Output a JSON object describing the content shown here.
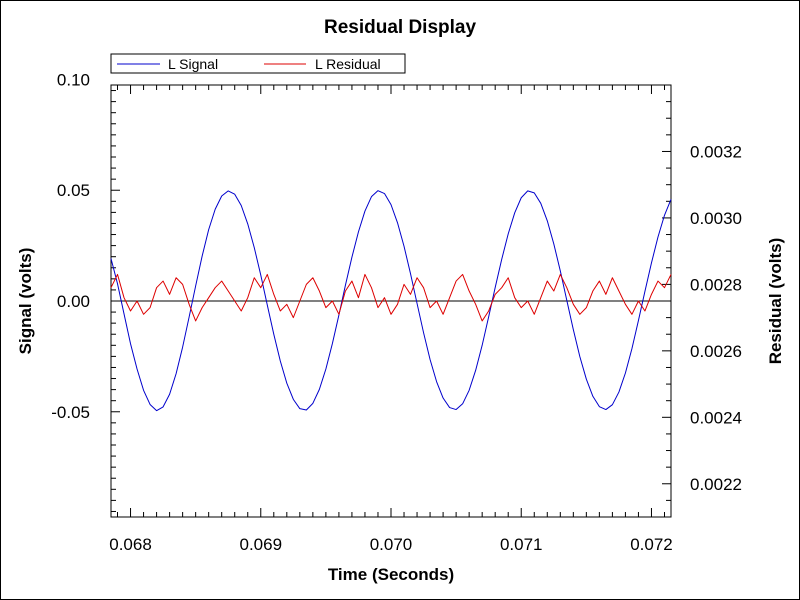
{
  "chart_data": {
    "type": "line",
    "title": "Residual Display",
    "xlabel": "Time (Seconds)",
    "ylabel_left": "Signal (volts)",
    "ylabel_right": "Residual (volts)",
    "xlim": [
      0.06785,
      0.07215
    ],
    "ylim_left": [
      -0.0975,
      0.0975
    ],
    "ylim_right": [
      0.0021,
      0.0034
    ],
    "x_ticks": [
      "0.068",
      "0.069",
      "0.070",
      "0.071",
      "0.072"
    ],
    "x_tick_values": [
      0.068,
      0.069,
      0.07,
      0.071,
      0.072
    ],
    "y_left_ticks": [
      "0.10",
      "0.05",
      "0.00",
      "-0.05"
    ],
    "y_left_tick_values": [
      0.1,
      0.05,
      0.0,
      -0.05
    ],
    "y_right_ticks": [
      "0.0032",
      "0.0030",
      "0.0028",
      "0.0026",
      "0.0024",
      "0.0022"
    ],
    "y_right_tick_values": [
      0.0032,
      0.003,
      0.0028,
      0.0026,
      0.0024,
      0.0022
    ],
    "zero_line": true,
    "grid": false,
    "legend_position": "top-left",
    "series": [
      {
        "name": "L Signal",
        "axis": "left",
        "color": "#0000cc",
        "x": [
          0.06785,
          0.0679,
          0.06795,
          0.068,
          0.06805,
          0.0681,
          0.06815,
          0.0682,
          0.06825,
          0.0683,
          0.06835,
          0.0684,
          0.06845,
          0.0685,
          0.06855,
          0.0686,
          0.06865,
          0.0687,
          0.06875,
          0.0688,
          0.06885,
          0.0689,
          0.06895,
          0.069,
          0.06905,
          0.0691,
          0.06915,
          0.0692,
          0.06925,
          0.0693,
          0.06935,
          0.0694,
          0.06945,
          0.0695,
          0.06955,
          0.0696,
          0.06965,
          0.0697,
          0.06975,
          0.0698,
          0.06985,
          0.0699,
          0.06995,
          0.07,
          0.07005,
          0.0701,
          0.07015,
          0.0702,
          0.07025,
          0.0703,
          0.07035,
          0.0704,
          0.07045,
          0.0705,
          0.07055,
          0.0706,
          0.07065,
          0.0707,
          0.07075,
          0.0708,
          0.07085,
          0.0709,
          0.07095,
          0.071,
          0.07105,
          0.0711,
          0.07115,
          0.0712,
          0.07125,
          0.0713,
          0.07135,
          0.0714,
          0.07145,
          0.0715,
          0.07155,
          0.0716,
          0.07165,
          0.0717,
          0.07175,
          0.0718,
          0.07185,
          0.0719,
          0.07195,
          0.072,
          0.07205,
          0.0721,
          0.07215
        ],
        "values": [
          0.0192,
          0.0078,
          -0.0058,
          -0.0193,
          -0.0307,
          -0.0403,
          -0.0467,
          -0.0495,
          -0.0478,
          -0.0421,
          -0.0328,
          -0.0208,
          -0.0072,
          0.0068,
          0.0203,
          0.0322,
          0.0414,
          0.0474,
          0.0497,
          0.0482,
          0.0431,
          0.0348,
          0.0241,
          0.0117,
          -0.0018,
          -0.015,
          -0.0271,
          -0.0371,
          -0.0444,
          -0.0486,
          -0.0492,
          -0.0462,
          -0.0399,
          -0.0307,
          -0.0192,
          -0.0063,
          0.0071,
          0.0198,
          0.0312,
          0.0406,
          0.0471,
          0.0498,
          0.0485,
          0.0435,
          0.0353,
          0.0247,
          0.0123,
          -0.0011,
          -0.0143,
          -0.0264,
          -0.0364,
          -0.0438,
          -0.0481,
          -0.049,
          -0.0464,
          -0.0403,
          -0.0313,
          -0.02,
          -0.0071,
          0.0061,
          0.0188,
          0.0303,
          0.0398,
          0.0466,
          0.0497,
          0.0488,
          0.0441,
          0.0362,
          0.0258,
          0.0136,
          0.0003,
          -0.0129,
          -0.0251,
          -0.0353,
          -0.043,
          -0.0477,
          -0.049,
          -0.0468,
          -0.0411,
          -0.0325,
          -0.0215,
          -0.0088,
          0.0044,
          0.0172,
          0.0289,
          0.0387,
          0.0459
        ]
      },
      {
        "name": "L Residual",
        "axis": "right",
        "color": "#dd0000",
        "x": [
          0.06785,
          0.0679,
          0.06795,
          0.068,
          0.06805,
          0.0681,
          0.06815,
          0.0682,
          0.06825,
          0.0683,
          0.06835,
          0.0684,
          0.06845,
          0.0685,
          0.06855,
          0.0686,
          0.06865,
          0.0687,
          0.06875,
          0.0688,
          0.06885,
          0.0689,
          0.06895,
          0.069,
          0.06905,
          0.0691,
          0.06915,
          0.0692,
          0.06925,
          0.0693,
          0.06935,
          0.0694,
          0.06945,
          0.0695,
          0.06955,
          0.0696,
          0.06965,
          0.0697,
          0.06975,
          0.0698,
          0.06985,
          0.0699,
          0.06995,
          0.07,
          0.07005,
          0.0701,
          0.07015,
          0.0702,
          0.07025,
          0.0703,
          0.07035,
          0.0704,
          0.07045,
          0.0705,
          0.07055,
          0.0706,
          0.07065,
          0.0707,
          0.07075,
          0.0708,
          0.07085,
          0.0709,
          0.07095,
          0.071,
          0.07105,
          0.0711,
          0.07115,
          0.0712,
          0.07125,
          0.0713,
          0.07135,
          0.0714,
          0.07145,
          0.0715,
          0.07155,
          0.0716,
          0.07165,
          0.0717,
          0.07175,
          0.0718,
          0.07185,
          0.0719,
          0.07195,
          0.072,
          0.07205,
          0.0721,
          0.07215
        ],
        "values": [
          0.00279,
          0.00283,
          0.00276,
          0.00272,
          0.00275,
          0.00271,
          0.00273,
          0.00279,
          0.00281,
          0.00277,
          0.00282,
          0.0028,
          0.00274,
          0.00269,
          0.00273,
          0.00276,
          0.00279,
          0.00281,
          0.00278,
          0.00275,
          0.00272,
          0.00276,
          0.00282,
          0.00279,
          0.00283,
          0.00277,
          0.00272,
          0.00274,
          0.0027,
          0.00275,
          0.0028,
          0.00282,
          0.00278,
          0.00273,
          0.00275,
          0.00271,
          0.00278,
          0.00281,
          0.00276,
          0.00283,
          0.00279,
          0.00273,
          0.00276,
          0.00271,
          0.00274,
          0.0028,
          0.00277,
          0.00282,
          0.00279,
          0.00273,
          0.00275,
          0.00271,
          0.00276,
          0.00281,
          0.00283,
          0.00278,
          0.00274,
          0.00269,
          0.00272,
          0.00277,
          0.00279,
          0.00282,
          0.00276,
          0.00273,
          0.00275,
          0.00271,
          0.00276,
          0.00281,
          0.00278,
          0.00283,
          0.00279,
          0.00274,
          0.00271,
          0.00273,
          0.00278,
          0.00281,
          0.00277,
          0.00282,
          0.00278,
          0.00274,
          0.00271,
          0.00275,
          0.00272,
          0.00277,
          0.00281,
          0.00279,
          0.00283
        ]
      }
    ]
  }
}
